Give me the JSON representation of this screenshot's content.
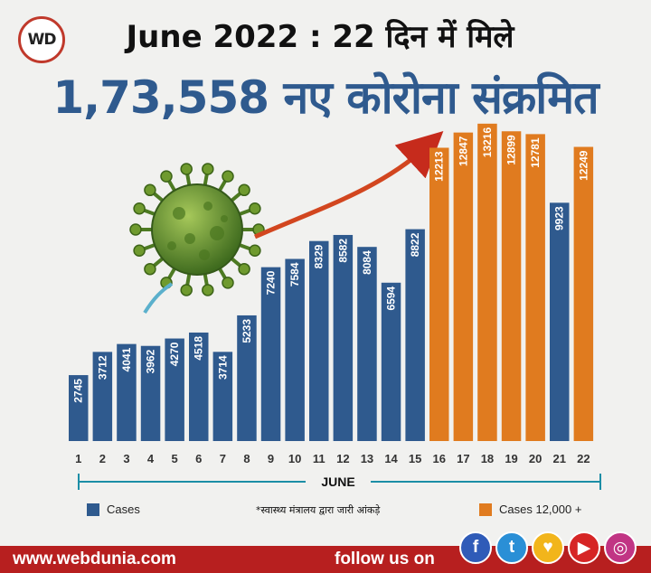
{
  "logo": {
    "text": "WD"
  },
  "title": {
    "line1": "June 2022 : 22 दिन में मिले",
    "line2": "1,73,558 नए कोरोना संक्रमित"
  },
  "chart_data": {
    "type": "bar",
    "categories": [
      "1",
      "2",
      "3",
      "4",
      "5",
      "6",
      "7",
      "8",
      "9",
      "10",
      "11",
      "12",
      "13",
      "14",
      "15",
      "16",
      "17",
      "18",
      "19",
      "20",
      "21",
      "22"
    ],
    "values": [
      2745,
      3712,
      4041,
      3962,
      4270,
      4518,
      3714,
      5233,
      7240,
      7584,
      8329,
      8582,
      8084,
      6594,
      8822,
      12213,
      12847,
      13216,
      12899,
      12781,
      9923,
      12249
    ],
    "xlabel": "JUNE",
    "ylim": [
      0,
      14000
    ],
    "threshold": 12000,
    "colors": {
      "cases": "#2f5a8e",
      "high": "#e07b1f"
    },
    "legend": {
      "cases": "Cases",
      "high": "Cases 12,000 +"
    }
  },
  "source_note": "*स्वास्थ्य मंत्रालय द्वारा जारी आंकड़े",
  "footer": {
    "url": "www.webdunia.com",
    "follow": "follow us on"
  },
  "social_icons": [
    {
      "name": "facebook-icon",
      "glyph": "f",
      "color": "#2f5bb8"
    },
    {
      "name": "twitter-icon",
      "glyph": "t",
      "color": "#2a8fd6"
    },
    {
      "name": "koo-icon",
      "glyph": "♥",
      "color": "#f2b51b"
    },
    {
      "name": "youtube-icon",
      "glyph": "▶",
      "color": "#d62525"
    },
    {
      "name": "instagram-icon",
      "glyph": "◎",
      "color": "#c13584"
    }
  ]
}
